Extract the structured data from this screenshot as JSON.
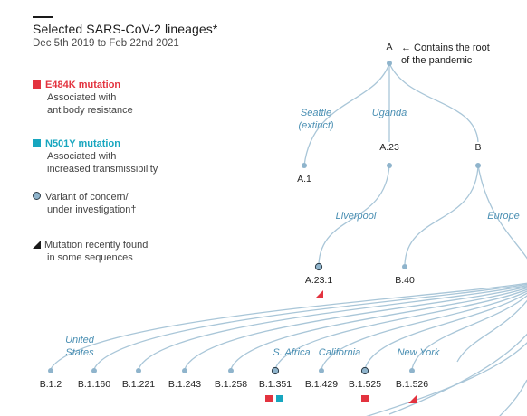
{
  "header": {
    "title": "Selected SARS-CoV-2 lineages*",
    "subtitle": "Dec 5th 2019 to Feb 22nd 2021"
  },
  "legend": {
    "e484k": {
      "title": "E484K mutation",
      "line1": "Associated with",
      "line2": "antibody resistance",
      "color": "#e3333f"
    },
    "n501y": {
      "title": "N501Y mutation",
      "line1": "Associated with",
      "line2": "increased transmissibility",
      "color": "#17a6bf"
    },
    "voc": {
      "line1": "Variant of concern/",
      "line2": "under investigation†"
    },
    "recent": {
      "line1": "Mutation recently found",
      "line2": "in some sequences"
    }
  },
  "root_note": {
    "line1": "← Contains the root",
    "line2": "of the pandemic"
  },
  "lineages": {
    "A": "A",
    "A1": "A.1",
    "A23": "A.23",
    "A231": "A.23.1",
    "B": "B",
    "B40": "B.40",
    "B12": "B.1.2",
    "B1160": "B.1.160",
    "B1221": "B.1.221",
    "B1243": "B.1.243",
    "B1258": "B.1.258",
    "B1351": "B.1.351",
    "B1429": "B.1.429",
    "B1525": "B.1.525",
    "B1526": "B.1.526"
  },
  "places": {
    "seattle1": "Seattle",
    "seattle2": "(extinct)",
    "uganda": "Uganda",
    "liverpool": "Liverpool",
    "europe": "Europe",
    "us1": "United",
    "us2": "States",
    "safrica": "S. Africa",
    "california": "California",
    "newyork": "New York"
  },
  "colors": {
    "branch": "#a9c6d8",
    "node": "#8fb4cc",
    "place": "#4a8fb3",
    "red": "#e3333f",
    "teal": "#17a6bf"
  }
}
